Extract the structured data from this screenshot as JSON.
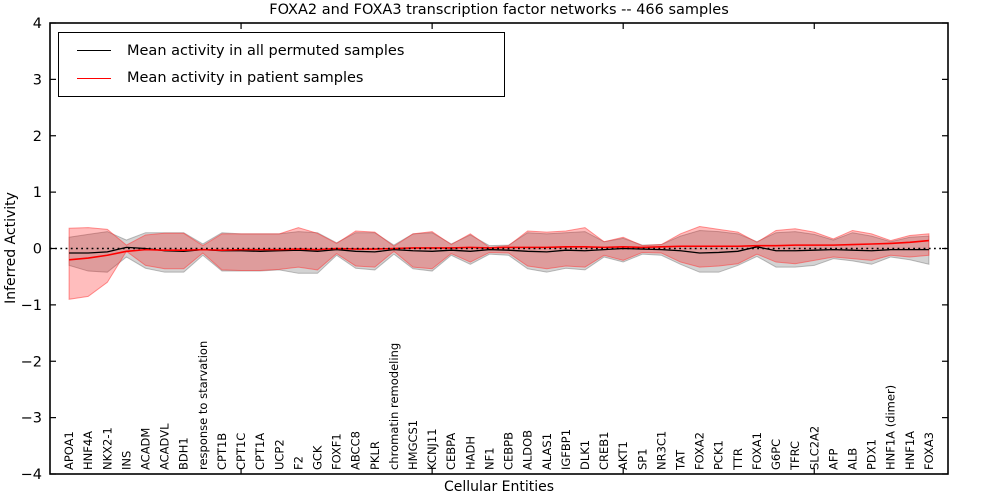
{
  "title": "FOXA2 and FOXA3 transcription factor networks -- 466 samples",
  "axes": {
    "ylabel": "Inferred Activity",
    "xlabel": "Cellular Entities"
  },
  "legend": {
    "entries": [
      {
        "label": "Mean activity in all permuted samples",
        "color": "#000000"
      },
      {
        "label": "Mean activity in patient samples",
        "color": "#ff0000"
      }
    ],
    "position": "upper left"
  },
  "chart_data": {
    "type": "line",
    "title": "FOXA2 and FOXA3 transcription factor networks -- 466 samples",
    "xlabel": "Cellular Entities",
    "ylabel": "Inferred Activity",
    "ylim": [
      -4,
      4
    ],
    "xlim": [
      0,
      47
    ],
    "yticks": [
      -4,
      -3,
      -2,
      -1,
      0,
      1,
      2,
      3,
      4
    ],
    "xticks": [
      10,
      20,
      30,
      40
    ],
    "grid": false,
    "zero_line": "dotted",
    "categories": [
      "APOA1",
      "HNF4A",
      "NKX2-1",
      "INS",
      "ACADM",
      "ACADVL",
      "BDH1",
      "response to starvation",
      "CPT1B",
      "CPT1C",
      "CPT1A",
      "UCP2",
      "F2",
      "GCK",
      "FOXF1",
      "ABCC8",
      "PKLR",
      "chromatin remodeling",
      "HMGCS1",
      "KCNJ11",
      "CEBPA",
      "HADH",
      "NF1",
      "CEBPB",
      "ALDOB",
      "ALAS1",
      "IGFBP1",
      "DLK1",
      "CREB1",
      "AKT1",
      "SP1",
      "NR3C1",
      "TAT",
      "FOXA2",
      "PCK1",
      "TTR",
      "FOXA1",
      "G6PC",
      "TFRC",
      "SLC2A2",
      "AFP",
      "ALB",
      "PDX1",
      "HNF1A (dimer)",
      "HNF1A",
      "FOXA3"
    ],
    "series": [
      {
        "name": "Mean activity in all permuted samples",
        "color": "#000000",
        "values": [
          -0.08,
          -0.08,
          -0.06,
          0.02,
          0.0,
          -0.04,
          -0.05,
          -0.02,
          -0.04,
          -0.04,
          -0.05,
          -0.04,
          -0.03,
          -0.05,
          -0.02,
          -0.05,
          -0.06,
          -0.02,
          -0.04,
          -0.05,
          -0.03,
          -0.05,
          -0.02,
          -0.03,
          -0.05,
          -0.06,
          -0.03,
          -0.04,
          -0.02,
          0.0,
          -0.01,
          -0.02,
          -0.04,
          -0.08,
          -0.07,
          -0.05,
          0.03,
          -0.04,
          -0.04,
          -0.03,
          -0.02,
          -0.03,
          -0.04,
          -0.02,
          -0.02,
          -0.02
        ]
      },
      {
        "name": "Mean activity in patient samples",
        "color": "#ff0000",
        "values": [
          -0.2,
          -0.17,
          -0.12,
          -0.05,
          -0.02,
          -0.03,
          -0.03,
          -0.02,
          -0.03,
          -0.02,
          -0.02,
          -0.02,
          -0.01,
          -0.02,
          0.0,
          -0.01,
          -0.01,
          0.0,
          0.01,
          0.01,
          0.01,
          0.02,
          0.01,
          0.02,
          0.02,
          0.02,
          0.03,
          0.03,
          0.02,
          0.03,
          0.02,
          0.03,
          0.04,
          0.04,
          0.04,
          0.04,
          0.05,
          0.05,
          0.06,
          0.06,
          0.06,
          0.07,
          0.08,
          0.09,
          0.11,
          0.14
        ]
      }
    ],
    "bands": [
      {
        "name": "permuted-samples-std-band",
        "fill": "rgba(130,130,130,0.35)",
        "edge": "rgba(110,110,110,0.45)",
        "upper": [
          0.2,
          0.25,
          0.3,
          0.15,
          0.28,
          0.28,
          0.28,
          0.08,
          0.28,
          0.26,
          0.26,
          0.26,
          0.3,
          0.28,
          0.1,
          0.28,
          0.28,
          0.06,
          0.26,
          0.28,
          0.08,
          0.24,
          0.05,
          0.06,
          0.28,
          0.26,
          0.28,
          0.3,
          0.12,
          0.18,
          0.06,
          0.07,
          0.22,
          0.32,
          0.3,
          0.26,
          0.12,
          0.28,
          0.3,
          0.25,
          0.15,
          0.28,
          0.22,
          0.12,
          0.2,
          0.22
        ],
        "lower": [
          -0.3,
          -0.4,
          -0.42,
          -0.15,
          -0.35,
          -0.42,
          -0.42,
          -0.12,
          -0.4,
          -0.4,
          -0.4,
          -0.38,
          -0.44,
          -0.44,
          -0.12,
          -0.35,
          -0.38,
          -0.1,
          -0.36,
          -0.4,
          -0.12,
          -0.28,
          -0.1,
          -0.12,
          -0.36,
          -0.42,
          -0.35,
          -0.38,
          -0.15,
          -0.24,
          -0.1,
          -0.12,
          -0.28,
          -0.42,
          -0.42,
          -0.3,
          -0.14,
          -0.33,
          -0.33,
          -0.3,
          -0.18,
          -0.22,
          -0.28,
          -0.15,
          -0.2,
          -0.28
        ]
      },
      {
        "name": "patient-samples-std-band",
        "fill": "rgba(255,0,0,0.26)",
        "edge": "rgba(255,60,60,0.55)",
        "upper": [
          0.36,
          0.37,
          0.34,
          0.06,
          0.24,
          0.27,
          0.27,
          0.05,
          0.26,
          0.26,
          0.26,
          0.26,
          0.37,
          0.27,
          0.09,
          0.31,
          0.29,
          0.04,
          0.26,
          0.3,
          0.07,
          0.26,
          0.02,
          0.05,
          0.31,
          0.29,
          0.31,
          0.37,
          0.12,
          0.2,
          0.05,
          0.07,
          0.26,
          0.39,
          0.34,
          0.29,
          0.11,
          0.32,
          0.35,
          0.29,
          0.17,
          0.32,
          0.26,
          0.14,
          0.23,
          0.26
        ],
        "lower": [
          -0.9,
          -0.85,
          -0.6,
          -0.05,
          -0.3,
          -0.36,
          -0.36,
          -0.08,
          -0.38,
          -0.39,
          -0.39,
          -0.37,
          -0.33,
          -0.38,
          -0.09,
          -0.31,
          -0.33,
          -0.05,
          -0.33,
          -0.36,
          -0.09,
          -0.24,
          -0.07,
          -0.08,
          -0.31,
          -0.36,
          -0.31,
          -0.33,
          -0.12,
          -0.21,
          -0.07,
          -0.08,
          -0.24,
          -0.33,
          -0.31,
          -0.27,
          -0.1,
          -0.24,
          -0.27,
          -0.21,
          -0.15,
          -0.18,
          -0.21,
          -0.12,
          -0.15,
          -0.12
        ]
      }
    ],
    "legend_position": "upper left"
  }
}
